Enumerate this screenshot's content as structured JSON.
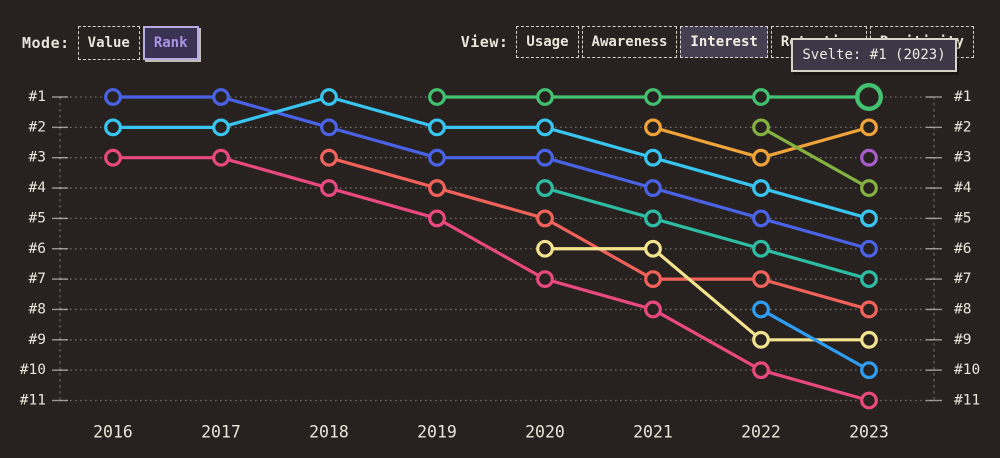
{
  "colors": {
    "background": "#272220",
    "text": "#E9E4D8",
    "accent_purple": "#AB94E4",
    "mode_selected_bg": "#3A3252",
    "mode_selected_border": "#B7ABE3",
    "view_selected_bg": "#454051",
    "tooltip_bg": "#3D3748",
    "tooltip_border": "#D9D3C6"
  },
  "header": {
    "mode": {
      "label": "Mode:",
      "options": [
        {
          "label": "Value",
          "selected": false
        },
        {
          "label": "Rank",
          "selected": true
        }
      ]
    },
    "view": {
      "label": "View:",
      "options": [
        {
          "label": "Usage",
          "selected": false
        },
        {
          "label": "Awareness",
          "selected": false
        },
        {
          "label": "Interest",
          "selected": true
        },
        {
          "label": "Retention",
          "selected": false
        },
        {
          "label": "Positivity",
          "selected": false
        }
      ]
    }
  },
  "tooltip": {
    "text": "Svelte: #1 (2023)"
  },
  "chart_data": {
    "type": "line",
    "subtype": "bump-rank",
    "title": "",
    "x": [
      "2016",
      "2017",
      "2018",
      "2019",
      "2020",
      "2021",
      "2022",
      "2023"
    ],
    "rank_labels": [
      "#1",
      "#2",
      "#3",
      "#4",
      "#5",
      "#6",
      "#7",
      "#8",
      "#9",
      "#10",
      "#11"
    ],
    "y_inverted": true,
    "ylim": [
      1,
      11
    ],
    "grid": "dotted-horizontal",
    "legend_position": "none",
    "series": [
      {
        "name": "blue",
        "color": "#4A62E6",
        "ranks": [
          1,
          1,
          2,
          3,
          3,
          4,
          5,
          6
        ]
      },
      {
        "name": "pink",
        "color": "#E9497F",
        "ranks": [
          3,
          3,
          4,
          5,
          7,
          8,
          10,
          11
        ]
      },
      {
        "name": "salmon",
        "color": "#F1625A",
        "ranks": [
          null,
          null,
          3,
          4,
          5,
          7,
          7,
          8
        ]
      },
      {
        "name": "cyan",
        "color": "#38C6F0",
        "ranks": [
          2,
          2,
          1,
          2,
          2,
          3,
          4,
          5
        ]
      },
      {
        "name": "teal",
        "color": "#2DBDA4",
        "ranks": [
          null,
          null,
          null,
          null,
          4,
          5,
          6,
          7
        ]
      },
      {
        "name": "svelte-green",
        "color": "#43C173",
        "ranks": [
          null,
          null,
          null,
          1,
          1,
          1,
          1,
          1
        ]
      },
      {
        "name": "orange",
        "color": "#F0A338",
        "ranks": [
          null,
          null,
          null,
          null,
          null,
          2,
          3,
          2
        ]
      },
      {
        "name": "olive",
        "color": "#83B240",
        "ranks": [
          null,
          null,
          null,
          null,
          null,
          null,
          2,
          4
        ]
      },
      {
        "name": "yellow",
        "color": "#F3E38E",
        "ranks": [
          null,
          null,
          null,
          null,
          6,
          6,
          9,
          9
        ]
      },
      {
        "name": "sky",
        "color": "#2E9DF2",
        "ranks": [
          null,
          null,
          null,
          null,
          null,
          null,
          8,
          10
        ]
      },
      {
        "name": "purple",
        "color": "#A95CCB",
        "ranks": [
          null,
          null,
          null,
          null,
          null,
          null,
          null,
          3
        ]
      }
    ],
    "highlight": {
      "series": "svelte-green",
      "x": "2023",
      "rank": 1
    }
  }
}
